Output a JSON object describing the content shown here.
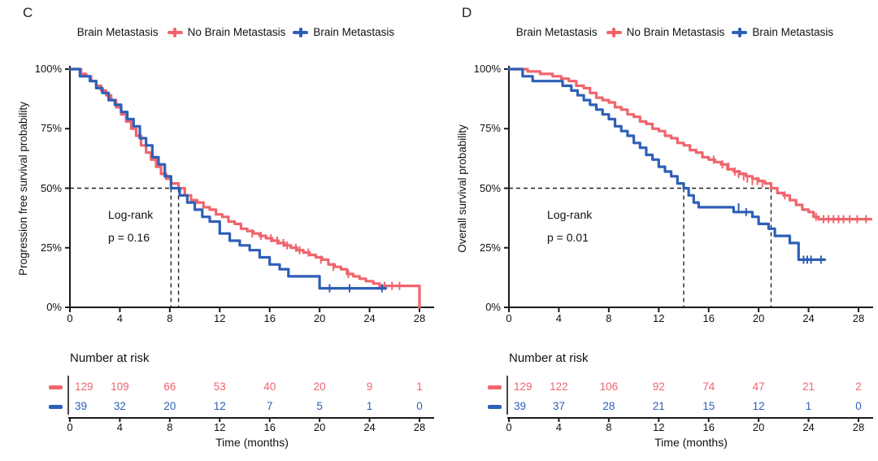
{
  "figure": {
    "background": "#ffffff",
    "text_color": "#111111",
    "axis_color": "#1a1a1a",
    "dash_color": "#222222",
    "red": "#F0656D",
    "blue": "#2E5FB7"
  },
  "chart_data": [
    {
      "type": "line",
      "km_type": "kaplan-meier-step",
      "panel_label": "C",
      "legend_title": "Brain Metastasis",
      "ylabel": "Progression free survival probability",
      "xlabel": "Time (months)",
      "x_ticks": [
        0,
        4,
        8,
        12,
        16,
        20,
        24,
        28
      ],
      "y_ticks": [
        {
          "label": "100%",
          "value": 100
        },
        {
          "label": "75%",
          "value": 75
        },
        {
          "label": "50%",
          "value": 50
        },
        {
          "label": "25%",
          "value": 25
        },
        {
          "label": "0%",
          "value": 0
        }
      ],
      "xlim": [
        0,
        29
      ],
      "ylim": [
        0,
        100
      ],
      "logrank_label": "Log-rank",
      "p_value_label": "p = 0.16",
      "median_dashed": {
        "y_percent": 50,
        "x_months": [
          8.1,
          8.7
        ]
      },
      "series": [
        {
          "name": "No Brain Metastasis",
          "color": "#F0656D",
          "points": [
            [
              0,
              100
            ],
            [
              0.9,
              98
            ],
            [
              1.3,
              97
            ],
            [
              1.7,
              95
            ],
            [
              2.1,
              93
            ],
            [
              2.5,
              91
            ],
            [
              2.9,
              89
            ],
            [
              3.3,
              87
            ],
            [
              3.7,
              84
            ],
            [
              4.1,
              81
            ],
            [
              4.5,
              78
            ],
            [
              4.9,
              75
            ],
            [
              5.3,
              72
            ],
            [
              5.7,
              68
            ],
            [
              6.1,
              65
            ],
            [
              6.5,
              62
            ],
            [
              6.9,
              59
            ],
            [
              7.3,
              56
            ],
            [
              7.7,
              54
            ],
            [
              8.1,
              52
            ],
            [
              8.7,
              50
            ],
            [
              9.2,
              47
            ],
            [
              9.7,
              45
            ],
            [
              10.2,
              44
            ],
            [
              10.7,
              42
            ],
            [
              11.2,
              41
            ],
            [
              11.7,
              39
            ],
            [
              12.2,
              38
            ],
            [
              12.7,
              36
            ],
            [
              13.2,
              35
            ],
            [
              13.7,
              33
            ],
            [
              14.2,
              32
            ],
            [
              14.7,
              31
            ],
            [
              15.2,
              30
            ],
            [
              15.7,
              29
            ],
            [
              16.2,
              28
            ],
            [
              16.7,
              27
            ],
            [
              17.2,
              26
            ],
            [
              17.7,
              25
            ],
            [
              18.2,
              24
            ],
            [
              18.7,
              23
            ],
            [
              19.2,
              22
            ],
            [
              19.7,
              21
            ],
            [
              20.2,
              20
            ],
            [
              20.7,
              18
            ],
            [
              21.2,
              17
            ],
            [
              21.7,
              16
            ],
            [
              22.2,
              14
            ],
            [
              22.7,
              13
            ],
            [
              23.2,
              12
            ],
            [
              23.7,
              11
            ],
            [
              24.3,
              10
            ],
            [
              24.8,
              9
            ],
            [
              28,
              9
            ],
            [
              28,
              0
            ]
          ],
          "censors": [
            [
              14.6,
              31
            ],
            [
              15.3,
              30
            ],
            [
              16.1,
              29
            ],
            [
              16.6,
              28
            ],
            [
              17.1,
              27
            ],
            [
              17.4,
              26
            ],
            [
              18.1,
              25
            ],
            [
              18.4,
              24
            ],
            [
              19.1,
              23
            ],
            [
              20.1,
              20
            ],
            [
              21.1,
              17
            ],
            [
              22.3,
              14
            ],
            [
              25.2,
              9
            ],
            [
              25.8,
              9
            ],
            [
              26.4,
              9
            ]
          ]
        },
        {
          "name": "Brain Metastasis",
          "color": "#2E5FB7",
          "points": [
            [
              0,
              100
            ],
            [
              0.8,
              97
            ],
            [
              1.6,
              95
            ],
            [
              2.1,
              92
            ],
            [
              2.6,
              90
            ],
            [
              3.1,
              87
            ],
            [
              3.6,
              85
            ],
            [
              4.1,
              82
            ],
            [
              4.6,
              79
            ],
            [
              5.1,
              76
            ],
            [
              5.6,
              71
            ],
            [
              6.1,
              68
            ],
            [
              6.6,
              63
            ],
            [
              7.1,
              60
            ],
            [
              7.6,
              55
            ],
            [
              8.1,
              50
            ],
            [
              8.8,
              47
            ],
            [
              9.4,
              44
            ],
            [
              10,
              41
            ],
            [
              10.6,
              38
            ],
            [
              11.2,
              36
            ],
            [
              12,
              31
            ],
            [
              12.8,
              28
            ],
            [
              13.6,
              26
            ],
            [
              14.4,
              24
            ],
            [
              15.2,
              21
            ],
            [
              16,
              18
            ],
            [
              16.8,
              16
            ],
            [
              17.5,
              13
            ],
            [
              20,
              8
            ],
            [
              25.3,
              8
            ]
          ],
          "censors": [
            [
              20.8,
              8
            ],
            [
              22.4,
              8
            ],
            [
              25.0,
              8
            ]
          ]
        }
      ],
      "risk_table": {
        "title": "Number at risk",
        "rows": [
          {
            "name": "No Brain Metastasis",
            "color": "#F0656D",
            "counts": [
              129,
              109,
              66,
              53,
              40,
              20,
              9,
              1
            ]
          },
          {
            "name": "Brain Metastasis",
            "color": "#2E5FB7",
            "counts": [
              39,
              32,
              20,
              12,
              7,
              5,
              1,
              0
            ]
          }
        ]
      }
    },
    {
      "type": "line",
      "km_type": "kaplan-meier-step",
      "panel_label": "D",
      "legend_title": "Brain Metastasis",
      "ylabel": "Overall survival probability",
      "xlabel": "Time (months)",
      "x_ticks": [
        0,
        4,
        8,
        12,
        16,
        20,
        24,
        28
      ],
      "y_ticks": [
        {
          "label": "100%",
          "value": 100
        },
        {
          "label": "75%",
          "value": 75
        },
        {
          "label": "50%",
          "value": 50
        },
        {
          "label": "25%",
          "value": 25
        },
        {
          "label": "0%",
          "value": 0
        }
      ],
      "xlim": [
        0,
        29
      ],
      "ylim": [
        0,
        100
      ],
      "logrank_label": "Log-rank",
      "p_value_label": "p = 0.01",
      "median_dashed": {
        "y_percent": 50,
        "x_months": [
          14,
          21
        ]
      },
      "series": [
        {
          "name": "No Brain Metastasis",
          "color": "#F0656D",
          "points": [
            [
              0,
              100
            ],
            [
              1.5,
              99
            ],
            [
              2.5,
              98
            ],
            [
              3.5,
              97
            ],
            [
              4.2,
              96
            ],
            [
              4.8,
              95
            ],
            [
              5.4,
              93
            ],
            [
              6,
              92
            ],
            [
              6.5,
              90
            ],
            [
              7,
              88
            ],
            [
              7.5,
              87
            ],
            [
              8,
              86
            ],
            [
              8.5,
              84
            ],
            [
              9,
              83
            ],
            [
              9.5,
              81
            ],
            [
              10,
              80
            ],
            [
              10.5,
              78
            ],
            [
              11,
              77
            ],
            [
              11.5,
              75
            ],
            [
              12,
              74
            ],
            [
              12.5,
              72
            ],
            [
              13,
              71
            ],
            [
              13.5,
              69
            ],
            [
              14,
              68
            ],
            [
              14.5,
              66
            ],
            [
              15,
              65
            ],
            [
              15.5,
              63
            ],
            [
              16,
              62
            ],
            [
              16.5,
              61
            ],
            [
              17,
              60
            ],
            [
              17.5,
              58
            ],
            [
              18,
              57
            ],
            [
              18.5,
              56
            ],
            [
              19,
              55
            ],
            [
              19.5,
              54
            ],
            [
              20,
              53
            ],
            [
              20.5,
              52
            ],
            [
              21,
              50
            ],
            [
              21.5,
              48
            ],
            [
              22,
              47
            ],
            [
              22.5,
              45
            ],
            [
              23,
              43
            ],
            [
              23.5,
              41
            ],
            [
              24,
              40
            ],
            [
              24.4,
              38
            ],
            [
              24.8,
              37
            ],
            [
              29,
              37
            ]
          ],
          "censors": [
            [
              16.4,
              62
            ],
            [
              17.1,
              60
            ],
            [
              17.6,
              59
            ],
            [
              18.1,
              57
            ],
            [
              18.4,
              56
            ],
            [
              18.8,
              55
            ],
            [
              19.1,
              54
            ],
            [
              19.5,
              53
            ],
            [
              19.9,
              53
            ],
            [
              20.3,
              52
            ],
            [
              22.1,
              47
            ],
            [
              24.6,
              38
            ],
            [
              25.2,
              37
            ],
            [
              25.6,
              37
            ],
            [
              26.0,
              37
            ],
            [
              26.4,
              37
            ],
            [
              26.8,
              37
            ],
            [
              27.3,
              37
            ],
            [
              27.9,
              37
            ],
            [
              28.6,
              37
            ]
          ]
        },
        {
          "name": "Brain Metastasis",
          "color": "#2E5FB7",
          "points": [
            [
              0,
              100
            ],
            [
              1.1,
              97
            ],
            [
              1.9,
              95
            ],
            [
              4.3,
              93
            ],
            [
              5,
              91
            ],
            [
              5.5,
              89
            ],
            [
              6,
              87
            ],
            [
              6.5,
              85
            ],
            [
              7,
              83
            ],
            [
              7.5,
              81
            ],
            [
              8,
              79
            ],
            [
              8.5,
              76
            ],
            [
              9,
              74
            ],
            [
              9.5,
              72
            ],
            [
              10,
              69
            ],
            [
              10.5,
              67
            ],
            [
              11,
              64
            ],
            [
              11.5,
              62
            ],
            [
              12,
              59
            ],
            [
              12.5,
              57
            ],
            [
              13,
              55
            ],
            [
              13.5,
              52
            ],
            [
              14,
              50
            ],
            [
              14.4,
              47
            ],
            [
              14.8,
              44
            ],
            [
              15.2,
              42
            ],
            [
              18,
              40
            ],
            [
              19.5,
              38
            ],
            [
              20,
              35
            ],
            [
              20.8,
              33
            ],
            [
              21.3,
              30
            ],
            [
              22.5,
              27
            ],
            [
              23.2,
              20
            ],
            [
              25.3,
              20
            ]
          ],
          "censors": [
            [
              18.4,
              42
            ],
            [
              19.0,
              40
            ],
            [
              23.6,
              20
            ],
            [
              23.9,
              20
            ],
            [
              24.2,
              20
            ],
            [
              25.0,
              20
            ]
          ]
        }
      ],
      "risk_table": {
        "title": "Number at risk",
        "rows": [
          {
            "name": "No Brain Metastasis",
            "color": "#F0656D",
            "counts": [
              129,
              122,
              106,
              92,
              74,
              47,
              21,
              2
            ]
          },
          {
            "name": "Brain Metastasis",
            "color": "#2E5FB7",
            "counts": [
              39,
              37,
              28,
              21,
              15,
              12,
              1,
              0
            ]
          }
        ]
      }
    }
  ]
}
